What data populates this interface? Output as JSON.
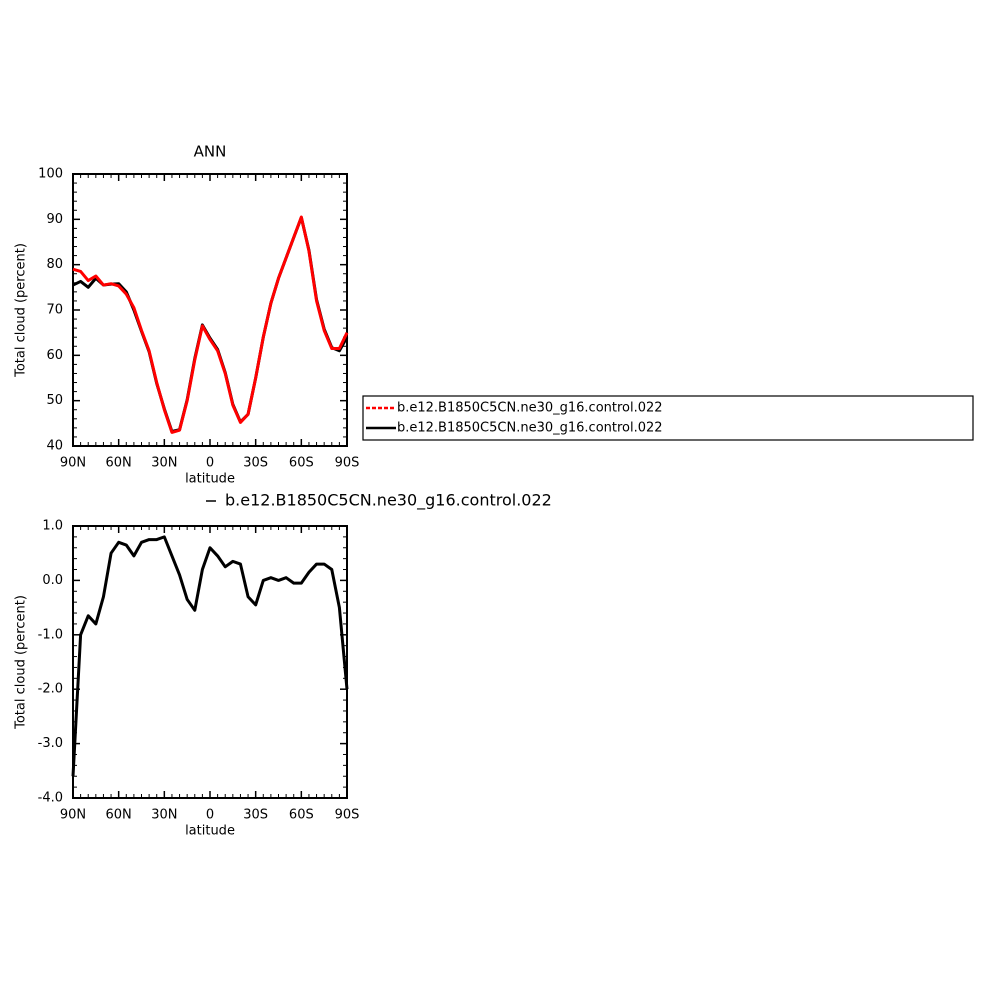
{
  "chart_data": [
    {
      "type": "line",
      "title": "ANN",
      "xlabel": "latitude",
      "ylabel": "Total cloud (percent)",
      "x": [
        90,
        85,
        80,
        75,
        70,
        65,
        60,
        55,
        50,
        45,
        40,
        35,
        30,
        25,
        20,
        15,
        10,
        5,
        0,
        -5,
        -10,
        -15,
        -20,
        -25,
        -30,
        -35,
        -40,
        -45,
        -50,
        -55,
        -60,
        -65,
        -70,
        -75,
        -80,
        -85,
        -90
      ],
      "series": [
        {
          "name": "b.e12.B1850C5CN.ne30_g16.control.022",
          "color": "#ff0000",
          "values": [
            79,
            78.5,
            76.5,
            77.5,
            75.5,
            75.8,
            75.3,
            73.5,
            70.5,
            65.5,
            61,
            54,
            48,
            43,
            43.5,
            50,
            59,
            66.5,
            63.5,
            61,
            56,
            49,
            45.2,
            47,
            55,
            64,
            71.5,
            77,
            81.5,
            86,
            90.5,
            83,
            72,
            65.5,
            61.5,
            61.5,
            65
          ]
        },
        {
          "name": "b.e12.B1850C5CN.ne30_g16.control.022",
          "color": "#000000",
          "values": [
            75.5,
            76.3,
            75,
            77,
            75.5,
            75.7,
            75.8,
            74,
            70,
            65.3,
            60.8,
            53.8,
            48.2,
            43.2,
            43.6,
            50.2,
            59.3,
            66.7,
            63.8,
            61.3,
            56.2,
            49.2,
            45.3,
            47,
            55,
            64,
            71.5,
            77,
            81.5,
            86,
            90.4,
            83.2,
            72.3,
            65.8,
            61.7,
            61,
            64
          ]
        }
      ],
      "xlim": [
        90,
        -90
      ],
      "xticks": [
        {
          "value": 90,
          "label": "90N"
        },
        {
          "value": 60,
          "label": "60N"
        },
        {
          "value": 30,
          "label": "30N"
        },
        0,
        {
          "value": -30,
          "label": "30S"
        },
        {
          "value": -60,
          "label": "60S"
        },
        {
          "value": -90,
          "label": "90S"
        }
      ],
      "ylim": [
        40,
        100
      ],
      "yticks": [
        40,
        50,
        60,
        70,
        80,
        90,
        100
      ]
    },
    {
      "type": "line",
      "xlabel": "latitude",
      "ylabel": "Total cloud (percent)",
      "x": [
        90,
        85,
        80,
        75,
        70,
        65,
        60,
        55,
        50,
        45,
        40,
        35,
        30,
        25,
        20,
        15,
        10,
        5,
        0,
        -5,
        -10,
        -15,
        -20,
        -25,
        -30,
        -35,
        -40,
        -45,
        -50,
        -55,
        -60,
        -65,
        -70,
        -75,
        -80,
        -85,
        -90
      ],
      "series": [
        {
          "name": "b.e12.B1850C5CN.ne30_g16.control.022",
          "color": "#000000",
          "values": [
            -3.6,
            -1.0,
            -0.65,
            -0.8,
            -0.3,
            0.5,
            0.7,
            0.65,
            0.45,
            0.7,
            0.75,
            0.75,
            0.8,
            0.45,
            0.1,
            -0.35,
            -0.55,
            0.2,
            0.6,
            0.45,
            0.25,
            0.35,
            0.3,
            -0.3,
            -0.45,
            0.0,
            0.05,
            0.0,
            0.05,
            -0.05,
            -0.05,
            0.15,
            0.3,
            0.3,
            0.2,
            -0.5,
            -2.0
          ]
        }
      ],
      "xlim": [
        90,
        -90
      ],
      "xticks": [
        {
          "value": 90,
          "label": "90N"
        },
        {
          "value": 60,
          "label": "60N"
        },
        {
          "value": 30,
          "label": "30N"
        },
        0,
        {
          "value": -30,
          "label": "30S"
        },
        {
          "value": -60,
          "label": "60S"
        },
        {
          "value": -90,
          "label": "90S"
        }
      ],
      "ylim": [
        -4,
        1
      ],
      "yticks": [
        {
          "value": -4,
          "label": "-4.0"
        },
        {
          "value": -3,
          "label": "-3.0"
        },
        {
          "value": -2,
          "label": "-2.0"
        },
        {
          "value": -1,
          "label": "-1.0"
        },
        {
          "value": 0,
          "label": "0.0"
        },
        {
          "value": 1,
          "label": "1.0"
        }
      ]
    }
  ]
}
